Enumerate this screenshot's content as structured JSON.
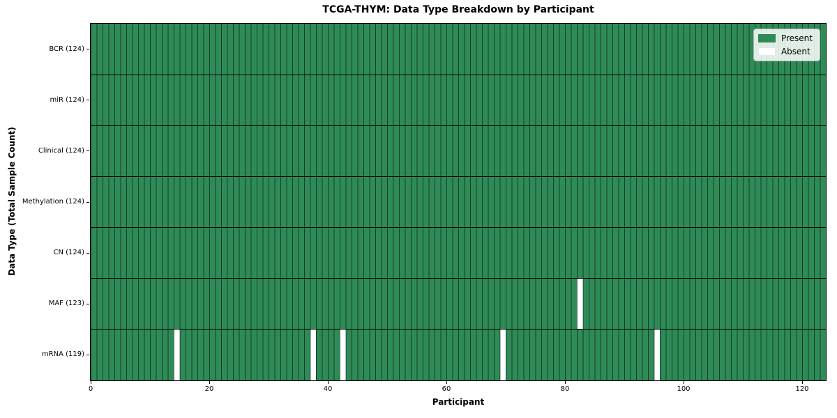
{
  "chart_data": {
    "type": "heatmap",
    "title": "TCGA-THYM: Data Type Breakdown by Participant",
    "xlabel": "Participant",
    "ylabel": "Data Type (Total Sample Count)",
    "x_range": [
      0,
      124
    ],
    "x_ticks": [
      0,
      20,
      40,
      60,
      80,
      100,
      120
    ],
    "n_participants": 124,
    "grid": "cell-borders",
    "legend_position": "upper right",
    "legend": [
      {
        "label": "Present",
        "color": "#2e8b57"
      },
      {
        "label": "Absent",
        "color": "#ffffff"
      }
    ],
    "colors": {
      "present": "#2e8b57",
      "absent": "#ffffff",
      "cell_edge": "rgba(0,0,0,0.55)",
      "row_divider": "#000000",
      "frame": "#000000"
    },
    "rows": [
      {
        "label": "BCR (124)",
        "data_type": "BCR",
        "total_sample_count": 124,
        "absent_participants": []
      },
      {
        "label": "miR (124)",
        "data_type": "miR",
        "total_sample_count": 124,
        "absent_participants": []
      },
      {
        "label": "Clinical (124)",
        "data_type": "Clinical",
        "total_sample_count": 124,
        "absent_participants": []
      },
      {
        "label": "Methylation (124)",
        "data_type": "Methylation",
        "total_sample_count": 124,
        "absent_participants": []
      },
      {
        "label": "CN (124)",
        "data_type": "CN",
        "total_sample_count": 124,
        "absent_participants": []
      },
      {
        "label": "MAF (123)",
        "data_type": "MAF",
        "total_sample_count": 123,
        "absent_participants": [
          82
        ]
      },
      {
        "label": "mRNA (119)",
        "data_type": "mRNA",
        "total_sample_count": 119,
        "absent_participants": [
          14,
          37,
          42,
          69,
          95
        ]
      }
    ]
  }
}
